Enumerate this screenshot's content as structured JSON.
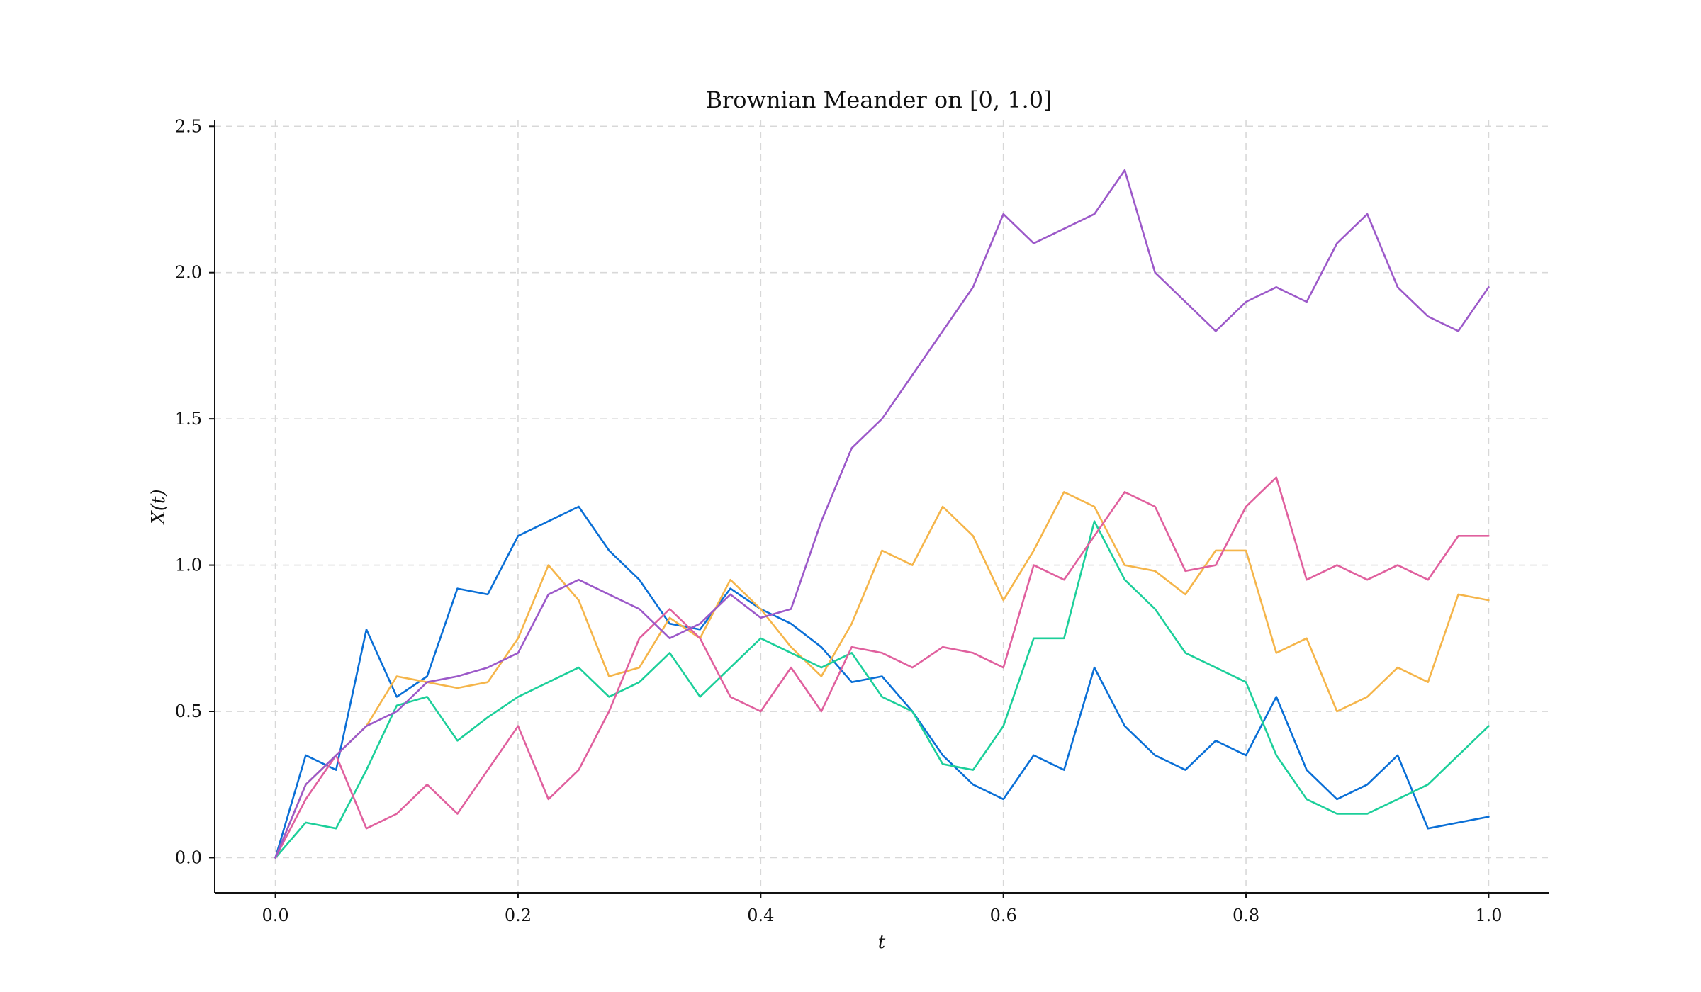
{
  "chart_data": {
    "type": "line",
    "title": "Brownian Meander on [0, 1.0]",
    "xlabel": "t",
    "ylabel": "X(t)",
    "xlim": [
      -0.05,
      1.05
    ],
    "ylim": [
      -0.12,
      2.52
    ],
    "xticks": [
      0.0,
      0.2,
      0.4,
      0.6,
      0.8,
      1.0
    ],
    "xtick_labels": [
      "0.0",
      "0.2",
      "0.4",
      "0.6",
      "0.8",
      "1.0"
    ],
    "yticks": [
      0.0,
      0.5,
      1.0,
      1.5,
      2.0,
      2.5
    ],
    "ytick_labels": [
      "0.0",
      "0.5",
      "1.0",
      "1.5",
      "2.0",
      "2.5"
    ],
    "grid": true,
    "x": [
      0.0,
      0.025,
      0.05,
      0.075,
      0.1,
      0.125,
      0.15,
      0.175,
      0.2,
      0.225,
      0.25,
      0.275,
      0.3,
      0.325,
      0.35,
      0.375,
      0.4,
      0.425,
      0.45,
      0.475,
      0.5,
      0.525,
      0.55,
      0.575,
      0.6,
      0.625,
      0.65,
      0.675,
      0.7,
      0.725,
      0.75,
      0.775,
      0.8,
      0.825,
      0.85,
      0.875,
      0.9,
      0.925,
      0.95,
      0.975,
      1.0
    ],
    "series": [
      {
        "color": "#0a6fd6",
        "values": [
          0.0,
          0.35,
          0.3,
          0.78,
          0.55,
          0.62,
          0.92,
          0.9,
          1.1,
          1.15,
          1.2,
          1.05,
          0.95,
          0.8,
          0.78,
          0.92,
          0.85,
          0.8,
          0.72,
          0.6,
          0.62,
          0.5,
          0.35,
          0.25,
          0.2,
          0.35,
          0.3,
          0.65,
          0.45,
          0.35,
          0.3,
          0.4,
          0.35,
          0.55,
          0.3,
          0.2,
          0.25,
          0.35,
          0.1,
          0.12,
          0.14
        ]
      },
      {
        "color": "#f5b54a",
        "values": [
          0.0,
          0.25,
          0.35,
          0.45,
          0.62,
          0.6,
          0.58,
          0.6,
          0.75,
          1.0,
          0.88,
          0.62,
          0.65,
          0.82,
          0.75,
          0.95,
          0.85,
          0.72,
          0.62,
          0.8,
          1.05,
          1.0,
          1.2,
          1.1,
          0.88,
          1.05,
          1.25,
          1.2,
          1.0,
          0.98,
          0.9,
          1.05,
          1.05,
          0.7,
          0.75,
          0.5,
          0.55,
          0.65,
          0.6,
          0.9,
          0.88
        ]
      },
      {
        "color": "#1ccf9a",
        "values": [
          0.0,
          0.12,
          0.1,
          0.3,
          0.52,
          0.55,
          0.4,
          0.48,
          0.55,
          0.6,
          0.65,
          0.55,
          0.6,
          0.7,
          0.55,
          0.65,
          0.75,
          0.7,
          0.65,
          0.7,
          0.55,
          0.5,
          0.32,
          0.3,
          0.45,
          0.75,
          0.75,
          1.15,
          0.95,
          0.85,
          0.7,
          0.65,
          0.6,
          0.35,
          0.2,
          0.15,
          0.15,
          0.2,
          0.25,
          0.35,
          0.45
        ]
      },
      {
        "color": "#e0609e",
        "values": [
          0.0,
          0.2,
          0.35,
          0.1,
          0.15,
          0.25,
          0.15,
          0.3,
          0.45,
          0.2,
          0.3,
          0.5,
          0.75,
          0.85,
          0.75,
          0.55,
          0.5,
          0.65,
          0.5,
          0.72,
          0.7,
          0.65,
          0.72,
          0.7,
          0.65,
          1.0,
          0.95,
          1.1,
          1.25,
          1.2,
          0.98,
          1.0,
          1.2,
          1.3,
          0.95,
          1.0,
          0.95,
          1.0,
          0.95,
          1.1,
          1.1
        ]
      },
      {
        "color": "#9c59c9",
        "values": [
          0.0,
          0.25,
          0.35,
          0.45,
          0.5,
          0.6,
          0.62,
          0.65,
          0.7,
          0.9,
          0.95,
          0.9,
          0.85,
          0.75,
          0.8,
          0.9,
          0.82,
          0.85,
          1.15,
          1.4,
          1.5,
          1.65,
          1.8,
          1.95,
          2.2,
          2.1,
          2.15,
          2.2,
          2.35,
          2.0,
          1.9,
          1.8,
          1.9,
          1.95,
          1.9,
          2.1,
          2.2,
          1.95,
          1.85,
          1.8,
          1.95
        ]
      }
    ]
  }
}
